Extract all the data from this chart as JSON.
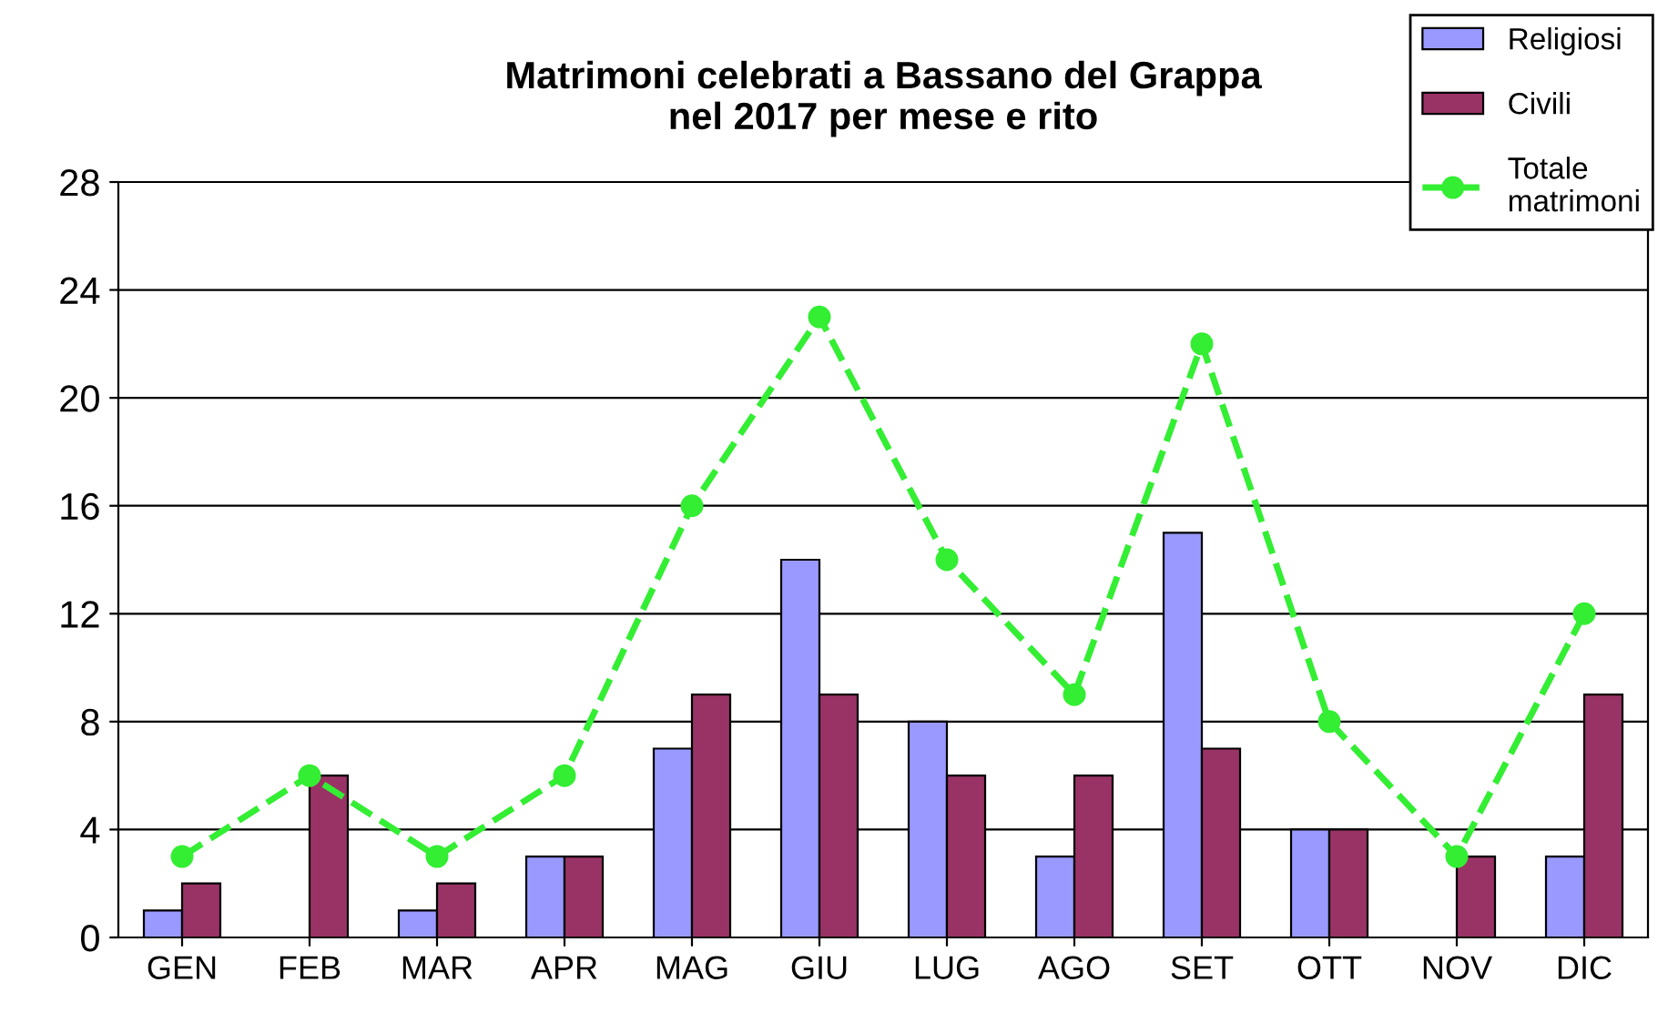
{
  "chart_data": {
    "type": "bar",
    "title": "Matrimoni celebrati a Bassano del Grappa\nnel 2017 per mese e rito",
    "categories": [
      "GEN",
      "FEB",
      "MAR",
      "APR",
      "MAG",
      "GIU",
      "LUG",
      "AGO",
      "SET",
      "OTT",
      "NOV",
      "DIC"
    ],
    "series": [
      {
        "name": "Religiosi",
        "color": "#9999ff",
        "values": [
          1,
          null,
          1,
          3,
          7,
          14,
          8,
          3,
          15,
          4,
          null,
          3
        ]
      },
      {
        "name": "Civili",
        "color": "#993366",
        "values": [
          2,
          6,
          2,
          3,
          9,
          9,
          6,
          6,
          7,
          4,
          3,
          9
        ]
      },
      {
        "name": "Totale\nmatrimoni",
        "type": "line",
        "color": "#33ee33",
        "marker": "circle",
        "line_style": "dashed",
        "values": [
          3,
          6,
          3,
          6,
          16,
          23,
          14,
          9,
          22,
          8,
          3,
          12
        ]
      }
    ],
    "ylim": [
      0,
      28
    ],
    "yticks": [
      0,
      4,
      8,
      12,
      16,
      20,
      24,
      28
    ],
    "grid": "y",
    "legend": "top right"
  }
}
